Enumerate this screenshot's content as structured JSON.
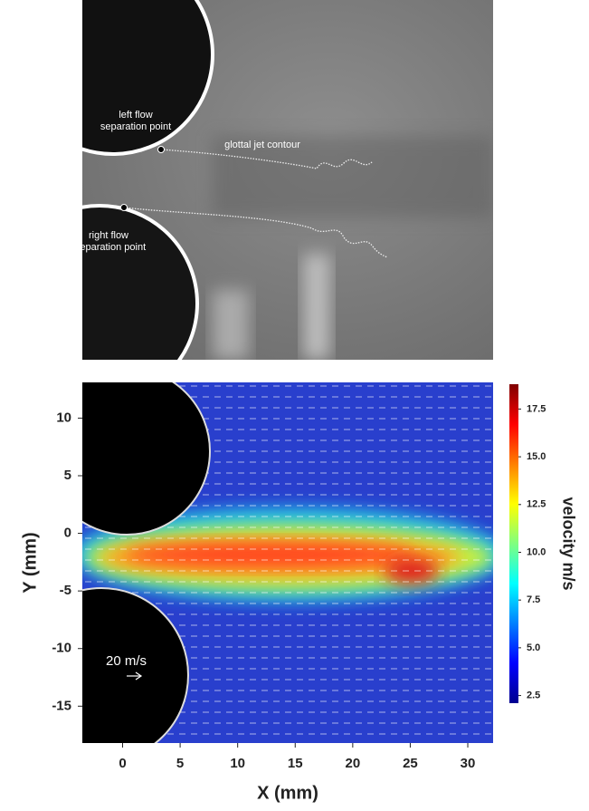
{
  "chart_data": [
    {
      "type": "image",
      "annotations": [
        "left flow",
        "separation point",
        "glottal jet contour",
        "right flow",
        "separation point"
      ]
    },
    {
      "type": "heatmap",
      "xlabel": "X (mm)",
      "ylabel": "Y (mm)",
      "xlim": [
        -3.5,
        32.2
      ],
      "xticks": [
        0,
        5,
        10,
        15,
        20,
        25,
        30
      ],
      "ylim": [
        -18.2,
        13.1
      ],
      "yticks": [
        -15,
        -10,
        -5,
        0,
        5,
        10
      ],
      "annotation": "20 m/s",
      "colorbar": {
        "label": "velocity m/s",
        "lim": [
          2.1,
          18.8
        ],
        "ticks": [
          2.5,
          {
            "value": 5,
            "label": "5.0"
          },
          7.5,
          {
            "value": 10,
            "label": "10.0"
          },
          12.5,
          {
            "value": 15,
            "label": "15.0"
          },
          17.5
        ]
      }
    }
  ]
}
